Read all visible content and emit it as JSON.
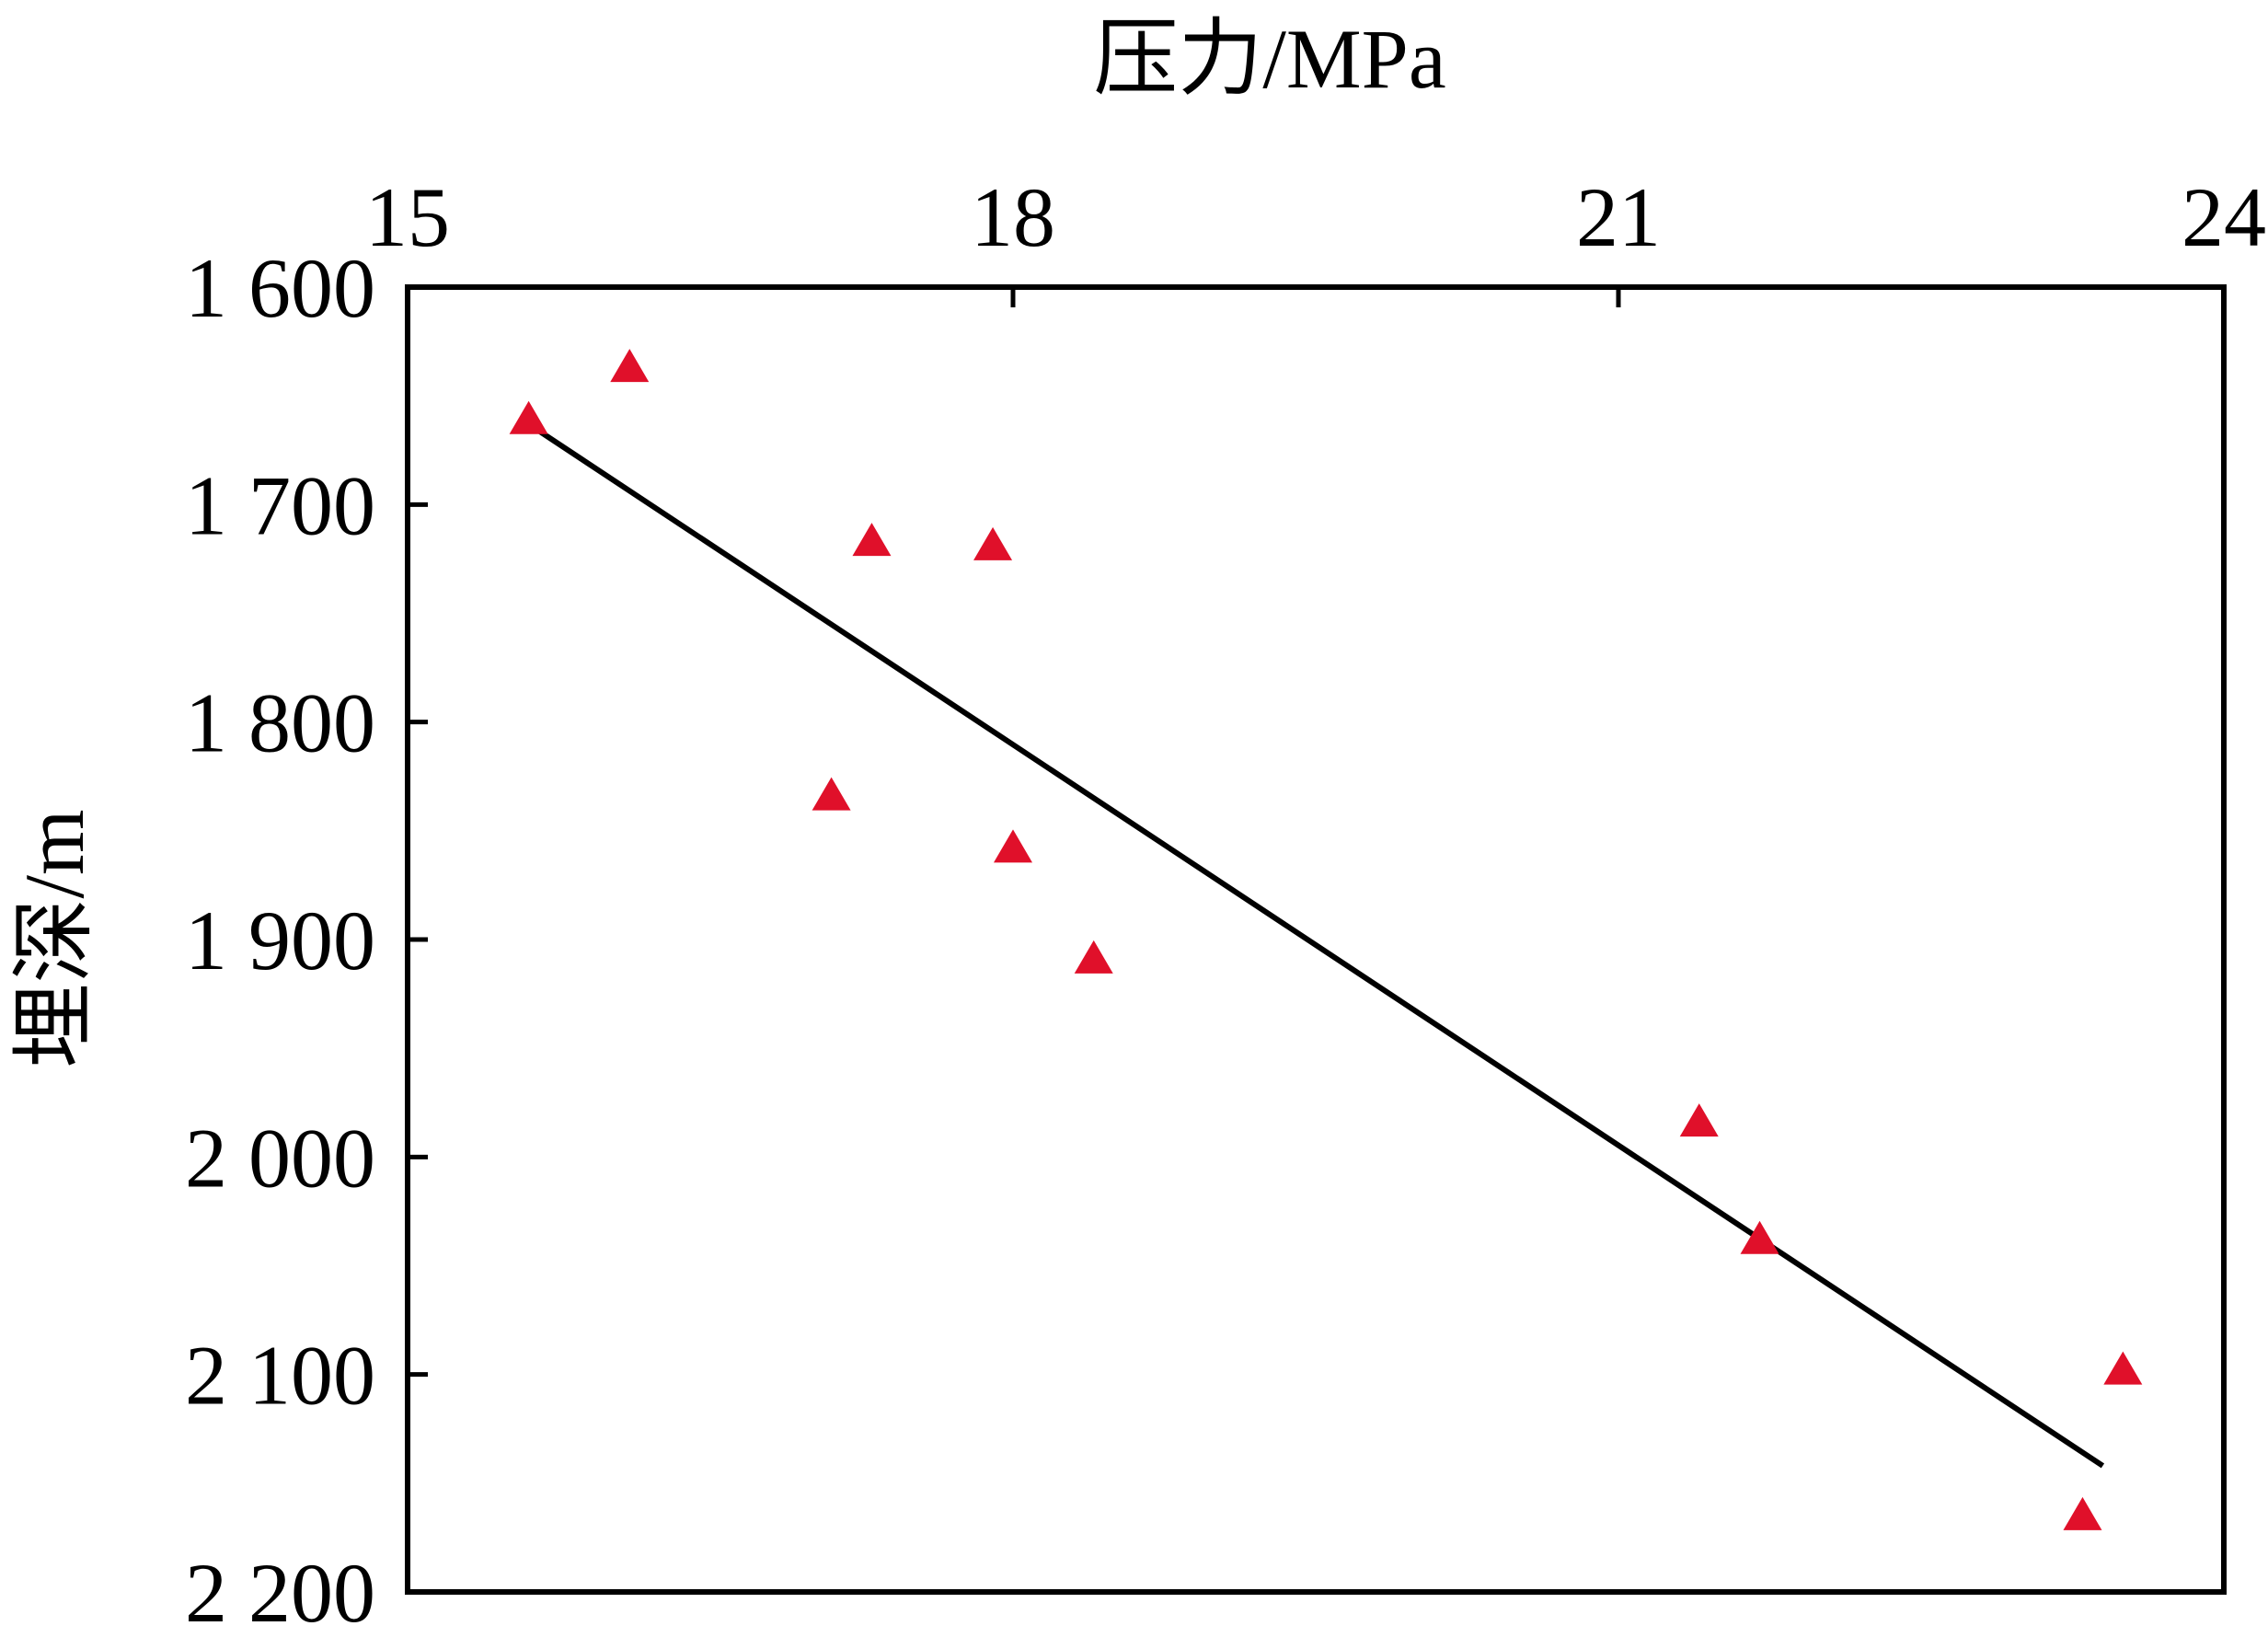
{
  "chart_data": {
    "type": "scatter",
    "xlabel": "压力/MPa",
    "ylabel": "埋深/m",
    "x_axis_position": "top",
    "y_axis_inverted": true,
    "xlim": [
      15,
      24
    ],
    "ylim": [
      1600,
      2200
    ],
    "x_ticks": [
      15,
      18,
      21,
      24
    ],
    "x_tick_labels": [
      "15",
      "18",
      "21",
      "24"
    ],
    "y_ticks": [
      1600,
      1700,
      1800,
      1900,
      2000,
      2100,
      2200
    ],
    "y_tick_labels": [
      "1 600",
      "1 700",
      "1 800",
      "1 900",
      "2 000",
      "2 100",
      "2 200"
    ],
    "grid": false,
    "series": [
      {
        "marker": "triangle",
        "color": "#e0102a",
        "points": [
          {
            "x": 15.6,
            "y": 1660
          },
          {
            "x": 16.1,
            "y": 1636
          },
          {
            "x": 17.1,
            "y": 1833
          },
          {
            "x": 17.3,
            "y": 1716
          },
          {
            "x": 17.9,
            "y": 1718
          },
          {
            "x": 18.0,
            "y": 1857
          },
          {
            "x": 18.4,
            "y": 1908
          },
          {
            "x": 21.4,
            "y": 1983
          },
          {
            "x": 21.7,
            "y": 2037
          },
          {
            "x": 23.3,
            "y": 2164
          },
          {
            "x": 23.5,
            "y": 2097
          }
        ]
      }
    ],
    "trendline": {
      "color": "#000000",
      "points": [
        {
          "x": 15.6,
          "y": 1663
        },
        {
          "x": 23.4,
          "y": 2142
        }
      ]
    }
  }
}
